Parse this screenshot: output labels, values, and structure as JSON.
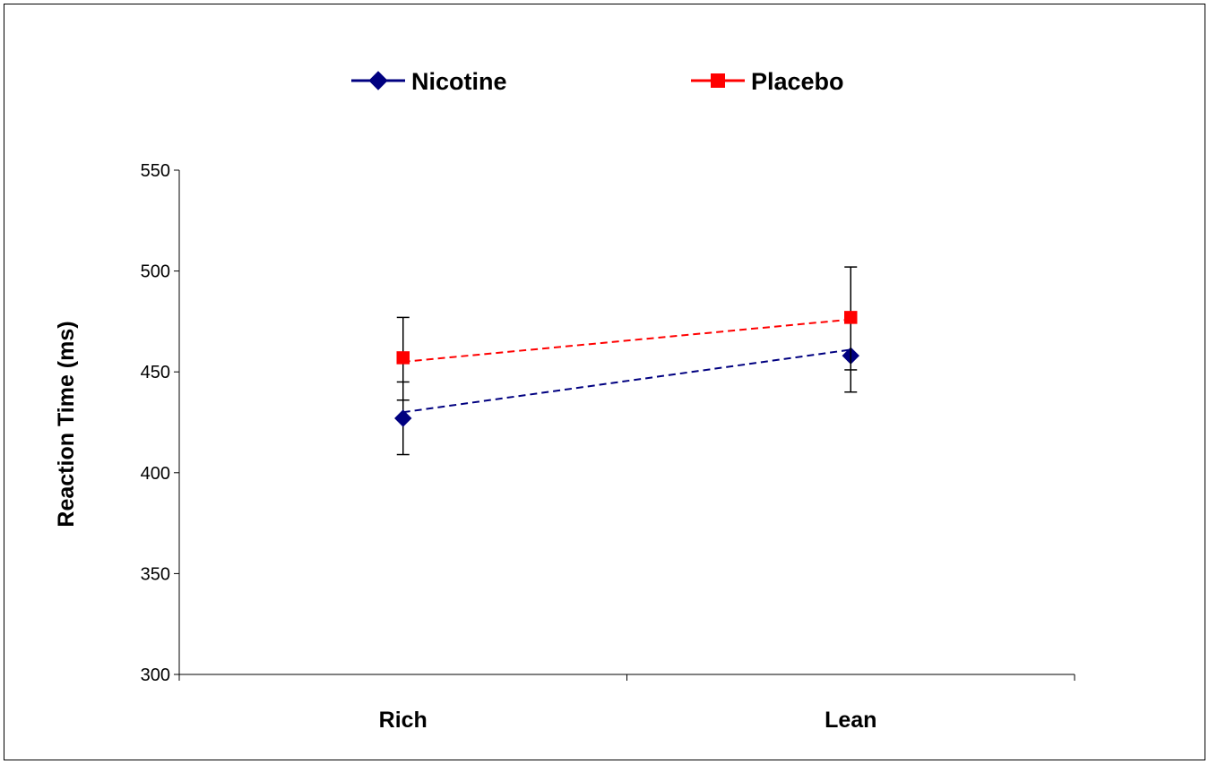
{
  "chart_data": {
    "type": "line",
    "title": "",
    "xlabel": "",
    "ylabel": "Reaction Time (ms)",
    "categories": [
      "Rich",
      "Lean"
    ],
    "ylim": [
      300,
      550
    ],
    "yticks": [
      300,
      350,
      400,
      450,
      500,
      550
    ],
    "grid": false,
    "legend_position": "top",
    "series": [
      {
        "name": "Nicotine",
        "values": [
          427,
          458
        ],
        "error_low": [
          409,
          440
        ],
        "error_high": [
          445,
          477
        ],
        "trend": [
          430,
          461
        ],
        "color": "#000080",
        "marker": "diamond",
        "trend_style": "dashed"
      },
      {
        "name": "Placebo",
        "values": [
          457,
          477
        ],
        "error_low": [
          436,
          451
        ],
        "error_high": [
          477,
          502
        ],
        "trend": [
          455,
          476
        ],
        "color": "#ff0000",
        "marker": "square",
        "trend_style": "dashed"
      }
    ]
  }
}
